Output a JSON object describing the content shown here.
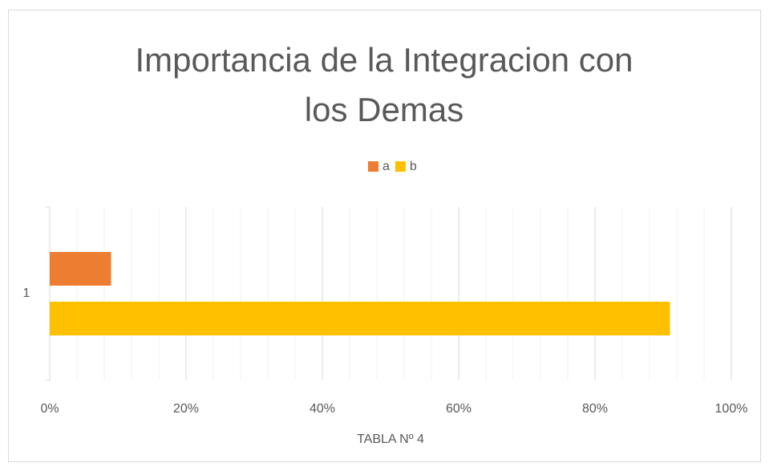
{
  "chart_data": {
    "type": "bar",
    "orientation": "horizontal",
    "title": "Importancia de la Integracion con los Demas",
    "x_label": "TABLA Nº 4",
    "categories": [
      "1"
    ],
    "series": [
      {
        "name": "a",
        "color": "#ed7d31",
        "values": [
          9
        ]
      },
      {
        "name": "b",
        "color": "#ffc000",
        "values": [
          91
        ]
      }
    ],
    "xlim": [
      0,
      100
    ],
    "xticks": [
      {
        "value": 0,
        "label": "0%"
      },
      {
        "value": 20,
        "label": "20%"
      },
      {
        "value": 40,
        "label": "40%"
      },
      {
        "value": 60,
        "label": "60%"
      },
      {
        "value": 80,
        "label": "80%"
      },
      {
        "value": 100,
        "label": "100%"
      }
    ],
    "x_minor_ticks": [
      4,
      8,
      12,
      16,
      24,
      28,
      32,
      36,
      44,
      48,
      52,
      56,
      64,
      68,
      72,
      76,
      84,
      88,
      92,
      96
    ],
    "grid": true,
    "legend": "top"
  }
}
